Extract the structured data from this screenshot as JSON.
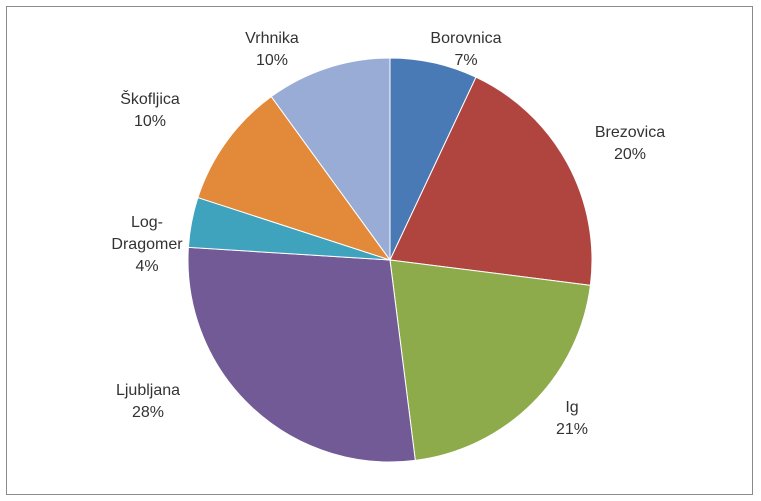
{
  "chart_data": {
    "type": "pie",
    "title": "",
    "slices": [
      {
        "label": "Borovnica",
        "pct_label": "7%",
        "value": 7,
        "color": "#4a7ab5"
      },
      {
        "label": "Brezovica",
        "pct_label": "20%",
        "value": 20,
        "color": "#b04540"
      },
      {
        "label": "Ig",
        "pct_label": "21%",
        "value": 21,
        "color": "#8dab4a"
      },
      {
        "label": "Ljubljana",
        "pct_label": "28%",
        "value": 28,
        "color": "#715a96"
      },
      {
        "label": "Log-Dragomer",
        "label_lines": [
          "Log-",
          "Dragomer"
        ],
        "pct_label": "4%",
        "value": 4,
        "color": "#3fa3bd"
      },
      {
        "label": "Škofljica",
        "pct_label": "10%",
        "value": 10,
        "color": "#e28a3a"
      },
      {
        "label": "Vrhnika",
        "pct_label": "10%",
        "value": 10,
        "color": "#98acd5"
      }
    ],
    "legend": "none"
  }
}
